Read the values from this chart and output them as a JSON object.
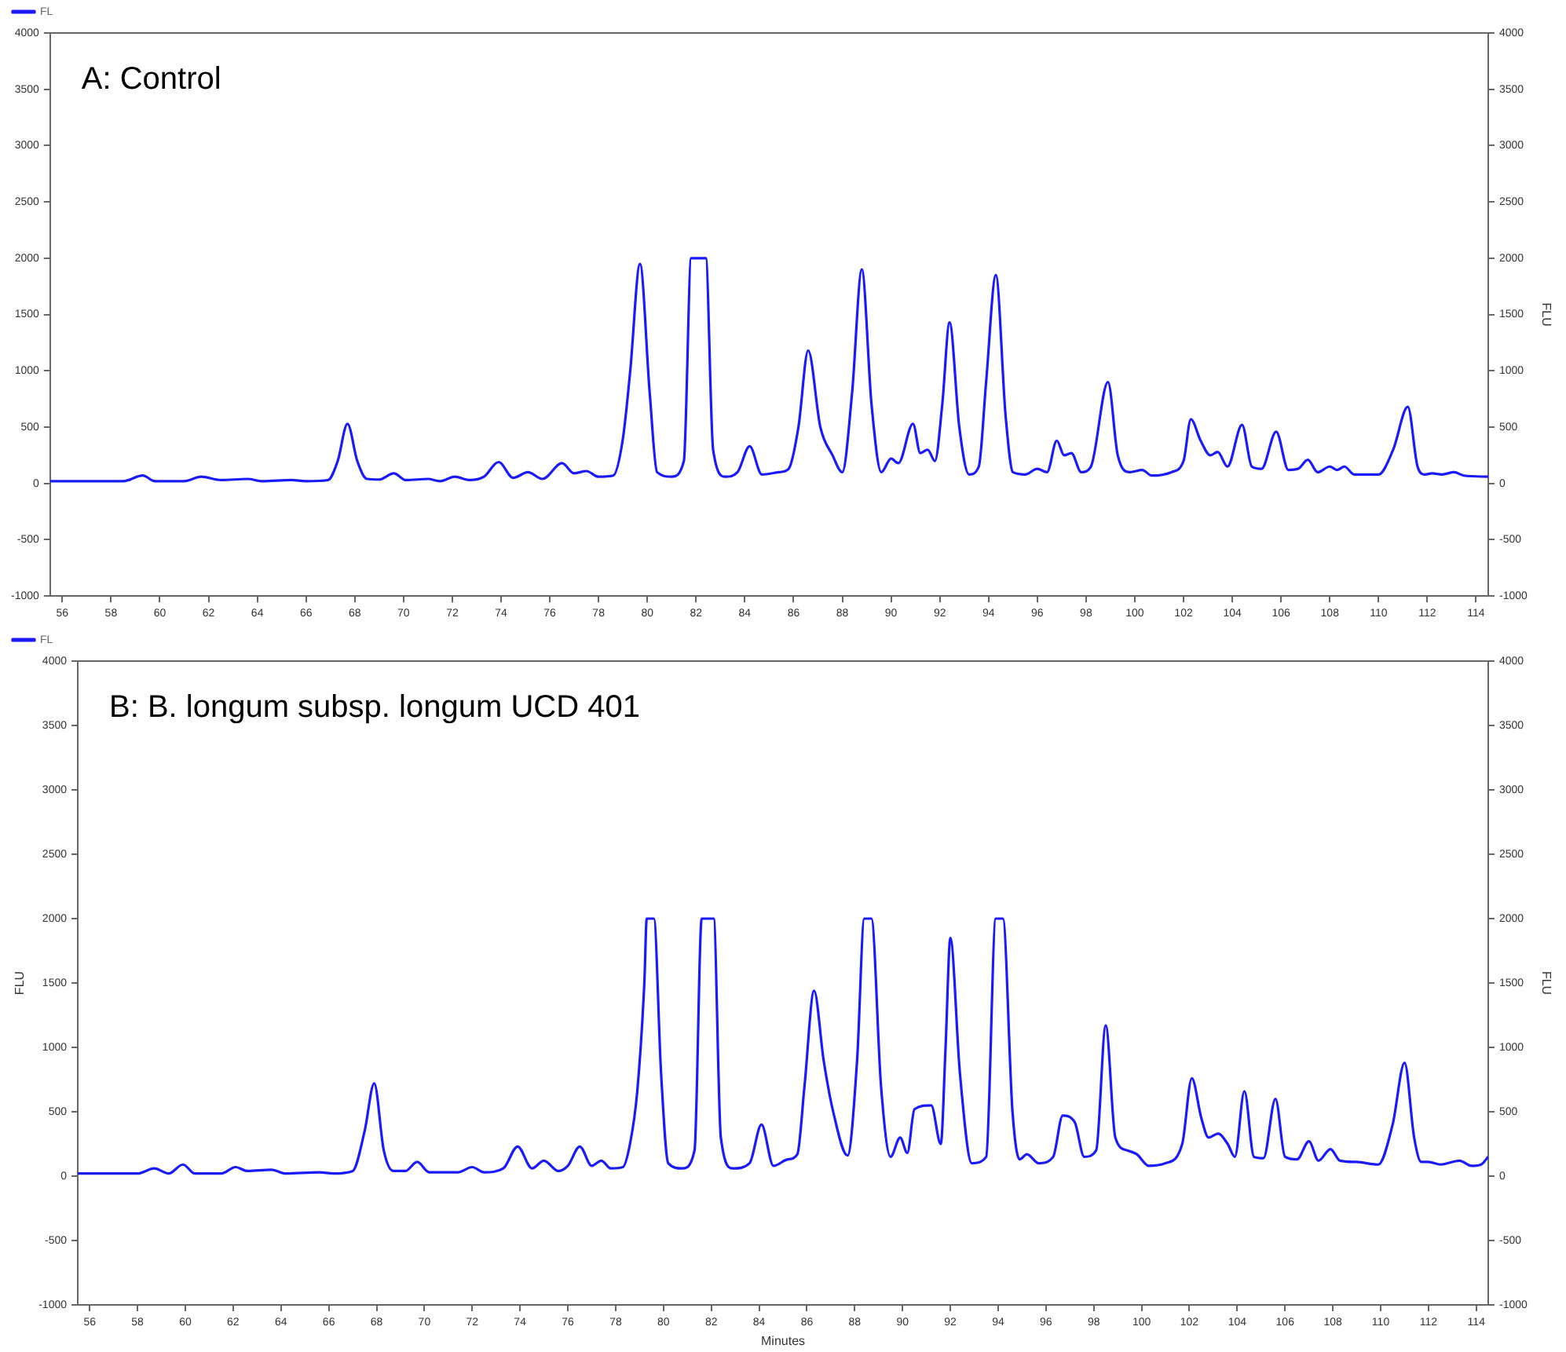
{
  "chart_data": [
    {
      "type": "line",
      "title": "A: Control",
      "y2label": "FLU",
      "xlim": [
        55.5,
        114.5
      ],
      "xticks": [
        56,
        58,
        60,
        62,
        64,
        66,
        68,
        70,
        72,
        74,
        76,
        78,
        80,
        82,
        84,
        86,
        88,
        90,
        92,
        94,
        96,
        98,
        100,
        102,
        104,
        106,
        108,
        110,
        112,
        114
      ],
      "ylim": [
        -1000,
        4000
      ],
      "yticks": [
        -1000,
        -500,
        0,
        500,
        1000,
        1500,
        2000,
        2500,
        3000,
        3500,
        4000
      ],
      "y2lim": [
        -1000,
        4000
      ],
      "y2ticks": [
        -1000,
        -500,
        0,
        500,
        1000,
        1500,
        2000,
        2500,
        3000,
        3500,
        4000
      ],
      "grid": false,
      "legend": "top left",
      "marker": "none",
      "line_style": "solid",
      "series": [
        {
          "name": "FL",
          "color": "#1a1aff",
          "x": [
            55.5,
            58.5,
            59.3,
            59.8,
            61.0,
            61.7,
            62.5,
            63.6,
            64.2,
            65.4,
            66.0,
            66.9,
            67.3,
            67.7,
            68.1,
            68.5,
            69.0,
            69.6,
            70.1,
            71.0,
            71.5,
            72.1,
            72.7,
            73.3,
            73.9,
            74.5,
            75.1,
            75.7,
            76.5,
            77.0,
            77.5,
            78.0,
            78.6,
            79.0,
            79.3,
            79.7,
            80.1,
            80.4,
            81.0,
            81.5,
            81.8,
            82.4,
            82.7,
            83.2,
            83.7,
            84.2,
            84.7,
            85.4,
            85.8,
            86.2,
            86.6,
            87.1,
            87.6,
            88.0,
            88.4,
            88.8,
            89.2,
            89.6,
            90.0,
            90.3,
            90.9,
            91.2,
            91.5,
            91.8,
            92.1,
            92.4,
            92.8,
            93.2,
            93.6,
            93.9,
            94.3,
            94.7,
            95.0,
            95.5,
            96.0,
            96.4,
            96.8,
            97.1,
            97.4,
            97.8,
            98.2,
            98.9,
            99.3,
            99.8,
            100.3,
            100.7,
            101.5,
            102.0,
            102.3,
            102.7,
            103.1,
            103.4,
            103.8,
            104.4,
            104.8,
            105.2,
            105.8,
            106.3,
            106.7,
            107.1,
            107.5,
            108.0,
            108.3,
            108.6,
            109.0,
            110.0,
            110.6,
            111.2,
            111.6,
            111.9,
            112.2,
            112.6,
            113.1,
            113.5,
            114.5
          ],
          "values": [
            20,
            20,
            70,
            20,
            20,
            60,
            30,
            40,
            20,
            30,
            20,
            30,
            200,
            530,
            200,
            40,
            35,
            90,
            30,
            40,
            20,
            60,
            30,
            60,
            190,
            50,
            100,
            40,
            180,
            90,
            110,
            60,
            70,
            400,
            1000,
            1950,
            800,
            100,
            60,
            200,
            2000,
            2000,
            300,
            60,
            100,
            330,
            80,
            100,
            130,
            500,
            1180,
            500,
            250,
            100,
            800,
            1900,
            700,
            100,
            220,
            180,
            530,
            270,
            300,
            200,
            700,
            1430,
            500,
            80,
            150,
            900,
            1850,
            600,
            100,
            80,
            130,
            100,
            380,
            250,
            270,
            100,
            150,
            900,
            250,
            100,
            120,
            70,
            100,
            200,
            570,
            380,
            250,
            280,
            150,
            520,
            150,
            130,
            460,
            120,
            130,
            210,
            100,
            150,
            120,
            150,
            80,
            80,
            300,
            680,
            150,
            80,
            90,
            80,
            100,
            70,
            60
          ]
        }
      ]
    },
    {
      "type": "line",
      "title": "B: B. longum subsp. longum UCD 401",
      "xlabel": "Minutes",
      "ylabel": "FLU",
      "y2label": "FLU",
      "xlim": [
        55.5,
        114.5
      ],
      "xticks": [
        56,
        58,
        60,
        62,
        64,
        66,
        68,
        70,
        72,
        74,
        76,
        78,
        80,
        82,
        84,
        86,
        88,
        90,
        92,
        94,
        96,
        98,
        100,
        102,
        104,
        106,
        108,
        110,
        112,
        114
      ],
      "ylim": [
        -1000,
        4000
      ],
      "yticks": [
        -1000,
        -500,
        0,
        500,
        1000,
        1500,
        2000,
        2500,
        3000,
        3500,
        4000
      ],
      "y2lim": [
        -1000,
        4000
      ],
      "y2ticks": [
        -1000,
        -500,
        0,
        500,
        1000,
        1500,
        2000,
        2500,
        3000,
        3500,
        4000
      ],
      "grid": false,
      "legend": "top left",
      "marker": "none",
      "line_style": "solid",
      "series": [
        {
          "name": "FL",
          "color": "#1a1aff",
          "x": [
            55.5,
            58.0,
            58.7,
            59.3,
            59.9,
            60.4,
            61.5,
            62.1,
            62.6,
            63.6,
            64.2,
            65.6,
            66.2,
            67.0,
            67.5,
            67.9,
            68.3,
            68.7,
            69.2,
            69.7,
            70.2,
            71.4,
            72.0,
            72.5,
            73.3,
            73.9,
            74.5,
            75.0,
            75.6,
            76.0,
            76.5,
            77.0,
            77.4,
            77.8,
            78.3,
            78.6,
            78.9,
            79.2,
            79.3,
            79.6,
            79.9,
            80.2,
            80.8,
            81.3,
            81.6,
            82.1,
            82.4,
            82.9,
            83.6,
            84.1,
            84.6,
            85.2,
            85.6,
            85.9,
            86.3,
            86.7,
            87.1,
            87.7,
            88.1,
            88.4,
            88.7,
            89.1,
            89.5,
            89.9,
            90.2,
            90.5,
            91.2,
            91.6,
            91.8,
            92.0,
            92.4,
            92.9,
            93.5,
            93.9,
            94.2,
            94.6,
            94.9,
            95.2,
            95.7,
            96.3,
            96.7,
            97.2,
            97.6,
            98.1,
            98.5,
            98.9,
            99.4,
            99.8,
            100.3,
            101.0,
            101.7,
            102.1,
            102.5,
            102.8,
            103.2,
            103.6,
            103.9,
            104.3,
            104.7,
            105.1,
            105.6,
            106.0,
            106.5,
            107.0,
            107.4,
            107.9,
            108.3,
            109.0,
            109.9,
            110.5,
            111.0,
            111.4,
            111.7,
            112.0,
            112.5,
            113.3,
            113.8,
            114.2,
            114.5
          ],
          "values": [
            20,
            20,
            60,
            20,
            90,
            20,
            20,
            70,
            40,
            50,
            20,
            30,
            20,
            40,
            350,
            720,
            200,
            40,
            40,
            110,
            30,
            30,
            70,
            30,
            60,
            230,
            60,
            120,
            40,
            80,
            230,
            80,
            120,
            60,
            70,
            250,
            650,
            1500,
            2000,
            2000,
            800,
            100,
            60,
            200,
            2000,
            2000,
            300,
            60,
            100,
            400,
            80,
            130,
            170,
            700,
            1440,
            900,
            500,
            160,
            900,
            2000,
            2000,
            700,
            150,
            300,
            180,
            520,
            550,
            250,
            1000,
            1850,
            800,
            100,
            150,
            2000,
            2000,
            500,
            130,
            170,
            100,
            150,
            470,
            420,
            150,
            200,
            1170,
            300,
            200,
            170,
            80,
            100,
            250,
            760,
            450,
            300,
            330,
            250,
            150,
            660,
            150,
            140,
            600,
            150,
            130,
            270,
            120,
            210,
            120,
            110,
            90,
            400,
            880,
            300,
            110,
            110,
            90,
            120,
            80,
            90,
            150
          ]
        }
      ]
    }
  ]
}
